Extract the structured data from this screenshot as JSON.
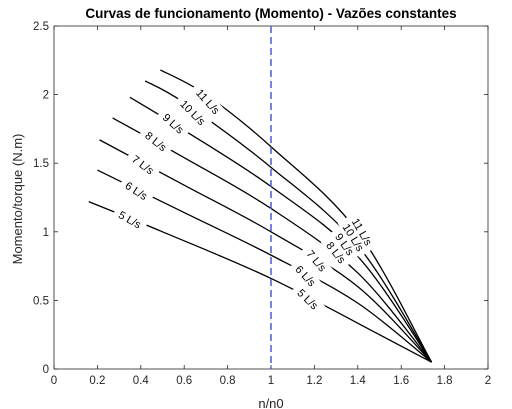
{
  "chart_data": {
    "type": "line",
    "title": "Curvas de funcionamento (Momento) - Vazões constantes",
    "xlabel": "n/n0",
    "ylabel": "Momento/torque (N.m)",
    "xlim": [
      0,
      2
    ],
    "ylim": [
      0,
      2.5
    ],
    "xticks": [
      0,
      0.2,
      0.4,
      0.6,
      0.8,
      1,
      1.2,
      1.4,
      1.6,
      1.8,
      2
    ],
    "yticks": [
      0,
      0.5,
      1,
      1.5,
      2,
      2.5
    ],
    "xtick_labels": [
      "0",
      "0.2",
      "0.4",
      "0.6",
      "0.8",
      "1",
      "1.2",
      "1.4",
      "1.6",
      "1.8",
      "2"
    ],
    "ytick_labels": [
      "0",
      "0.5",
      "1",
      "1.5",
      "2",
      "2.5"
    ],
    "grid": false,
    "box": true,
    "reference_line": {
      "x": 1,
      "style": "dashed",
      "color": "#4a5bd4"
    },
    "line_color": "#000000",
    "series": [
      {
        "name": "5 L/s",
        "x": [
          0.16,
          0.5,
          1.0,
          1.5,
          1.74
        ],
        "y": [
          1.22,
          1.0,
          0.66,
          0.25,
          0.05
        ],
        "labels": [
          {
            "text": "5 L/s",
            "x": 0.35,
            "y": 1.09,
            "angle": 29
          },
          {
            "text": "5 L/s",
            "x": 1.17,
            "y": 0.51,
            "angle": 44
          }
        ]
      },
      {
        "name": "6 L/s",
        "x": [
          0.2,
          0.6,
          1.0,
          1.4,
          1.74
        ],
        "y": [
          1.45,
          1.14,
          0.83,
          0.48,
          0.05
        ],
        "labels": [
          {
            "text": "6 L/s",
            "x": 0.38,
            "y": 1.3,
            "angle": 33
          },
          {
            "text": "6 L/s",
            "x": 1.16,
            "y": 0.68,
            "angle": 47
          }
        ]
      },
      {
        "name": "7 L/s",
        "x": [
          0.21,
          0.6,
          1.0,
          1.4,
          1.74
        ],
        "y": [
          1.67,
          1.34,
          1.0,
          0.6,
          0.05
        ],
        "labels": [
          {
            "text": "7 L/s",
            "x": 0.41,
            "y": 1.49,
            "angle": 36
          },
          {
            "text": "7 L/s",
            "x": 1.21,
            "y": 0.79,
            "angle": 50
          }
        ]
      },
      {
        "name": "8 L/s",
        "x": [
          0.27,
          0.6,
          1.0,
          1.4,
          1.74
        ],
        "y": [
          1.83,
          1.54,
          1.17,
          0.7,
          0.05
        ],
        "labels": [
          {
            "text": "8 L/s",
            "x": 0.47,
            "y": 1.66,
            "angle": 39
          },
          {
            "text": "8 L/s",
            "x": 1.3,
            "y": 0.85,
            "angle": 52
          }
        ]
      },
      {
        "name": "9 L/s",
        "x": [
          0.35,
          0.6,
          1.0,
          1.4,
          1.74
        ],
        "y": [
          1.98,
          1.74,
          1.33,
          0.82,
          0.05
        ],
        "labels": [
          {
            "text": "9 L/s",
            "x": 0.55,
            "y": 1.79,
            "angle": 42
          },
          {
            "text": "9 L/s",
            "x": 1.34,
            "y": 0.91,
            "angle": 55
          }
        ]
      },
      {
        "name": "10 L/s",
        "x": [
          0.42,
          0.6,
          1.0,
          1.4,
          1.74
        ],
        "y": [
          2.1,
          1.94,
          1.47,
          0.9,
          0.05
        ],
        "labels": [
          {
            "text": "10 L/s",
            "x": 0.64,
            "y": 1.87,
            "angle": 45
          },
          {
            "text": "10 L/s",
            "x": 1.38,
            "y": 0.96,
            "angle": 58
          }
        ]
      },
      {
        "name": "11 L/s",
        "x": [
          0.49,
          0.7,
          1.0,
          1.4,
          1.74
        ],
        "y": [
          2.18,
          2.0,
          1.62,
          1.0,
          0.05
        ],
        "labels": [
          {
            "text": "11 L/s",
            "x": 0.71,
            "y": 1.95,
            "angle": 48
          },
          {
            "text": "11 L/s",
            "x": 1.42,
            "y": 1.0,
            "angle": 60
          }
        ]
      }
    ]
  }
}
